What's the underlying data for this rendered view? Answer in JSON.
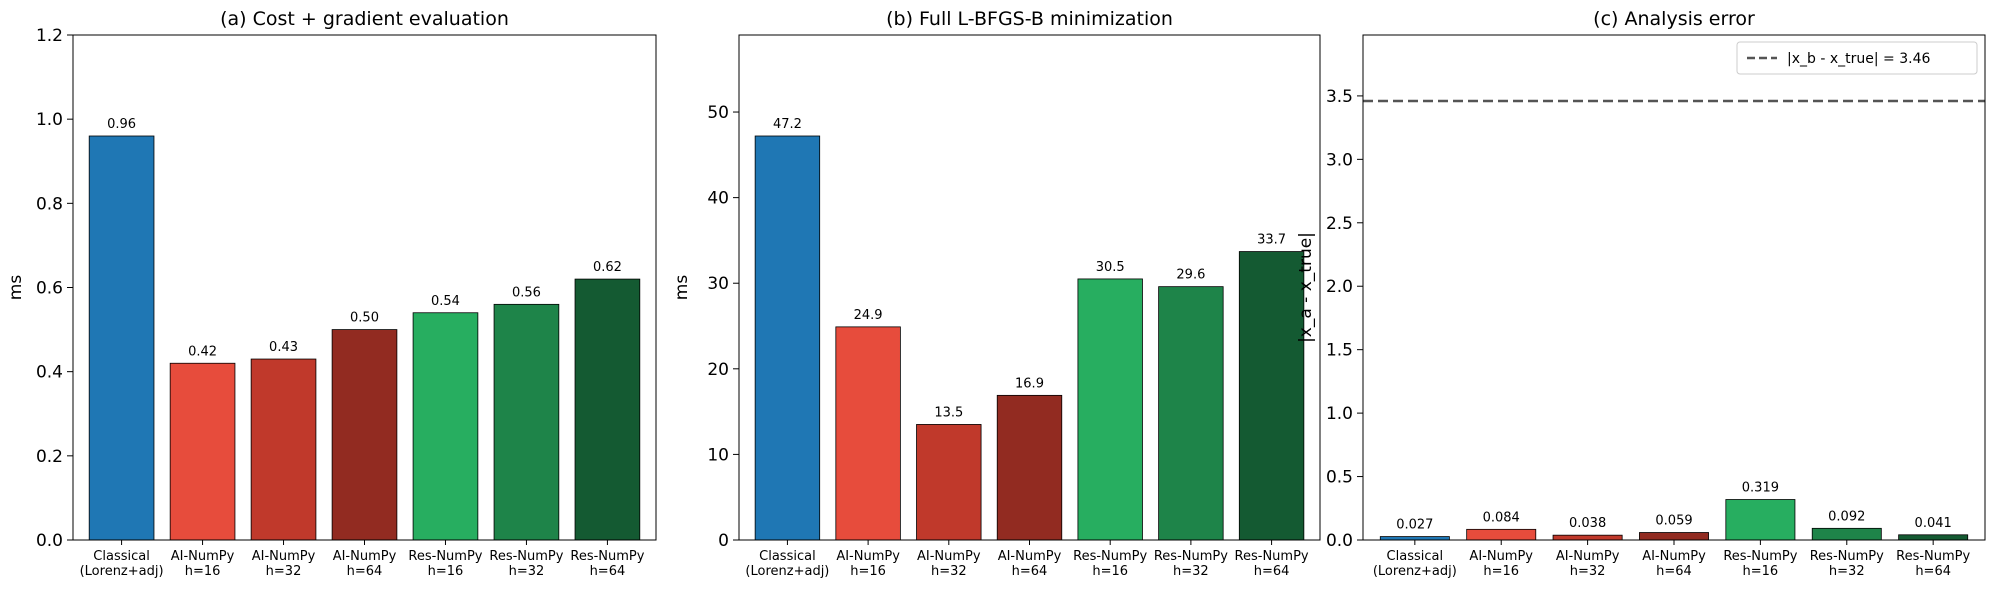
{
  "chart_data": [
    {
      "type": "bar",
      "title": "(a) Cost + gradient evaluation",
      "xlabel": "",
      "ylabel": "ms",
      "ylim": [
        0,
        1.2
      ],
      "yticks": [
        "0.0",
        "0.2",
        "0.4",
        "0.6",
        "0.8",
        "1.0",
        "1.2"
      ],
      "categories": [
        [
          "Classical",
          "(Lorenz+adj)"
        ],
        [
          "AI-NumPy",
          "h=16"
        ],
        [
          "AI-NumPy",
          "h=32"
        ],
        [
          "AI-NumPy",
          "h=64"
        ],
        [
          "Res-NumPy",
          "h=16"
        ],
        [
          "Res-NumPy",
          "h=32"
        ],
        [
          "Res-NumPy",
          "h=64"
        ]
      ],
      "values": [
        0.96,
        0.42,
        0.43,
        0.5,
        0.54,
        0.56,
        0.62
      ],
      "value_labels": [
        "0.96",
        "0.42",
        "0.43",
        "0.50",
        "0.54",
        "0.56",
        "0.62"
      ],
      "colors": [
        "#1f77b4",
        "#e74c3c",
        "#c0392b",
        "#922b21",
        "#27ae60",
        "#1e8449",
        "#145a32"
      ]
    },
    {
      "type": "bar",
      "title": "(b) Full L-BFGS-B minimization",
      "xlabel": "",
      "ylabel": "ms",
      "ylim": [
        0,
        59
      ],
      "yticks": [
        "0",
        "10",
        "20",
        "30",
        "40",
        "50"
      ],
      "categories": [
        [
          "Classical",
          "(Lorenz+adj)"
        ],
        [
          "AI-NumPy",
          "h=16"
        ],
        [
          "AI-NumPy",
          "h=32"
        ],
        [
          "AI-NumPy",
          "h=64"
        ],
        [
          "Res-NumPy",
          "h=16"
        ],
        [
          "Res-NumPy",
          "h=32"
        ],
        [
          "Res-NumPy",
          "h=64"
        ]
      ],
      "values": [
        47.2,
        24.9,
        13.5,
        16.9,
        30.5,
        29.6,
        33.7
      ],
      "value_labels": [
        "47.2",
        "24.9",
        "13.5",
        "16.9",
        "30.5",
        "29.6",
        "33.7"
      ],
      "colors": [
        "#1f77b4",
        "#e74c3c",
        "#c0392b",
        "#922b21",
        "#27ae60",
        "#1e8449",
        "#145a32"
      ]
    },
    {
      "type": "bar",
      "title": "(c) Analysis error",
      "xlabel": "",
      "ylabel": "|x_a - x_true|",
      "ylim": [
        0,
        3.98
      ],
      "yticks": [
        "0.0",
        "0.5",
        "1.0",
        "1.5",
        "2.0",
        "2.5",
        "3.0",
        "3.5"
      ],
      "categories": [
        [
          "Classical",
          "(Lorenz+adj)"
        ],
        [
          "AI-NumPy",
          "h=16"
        ],
        [
          "AI-NumPy",
          "h=32"
        ],
        [
          "AI-NumPy",
          "h=64"
        ],
        [
          "Res-NumPy",
          "h=16"
        ],
        [
          "Res-NumPy",
          "h=32"
        ],
        [
          "Res-NumPy",
          "h=64"
        ]
      ],
      "values": [
        0.027,
        0.084,
        0.038,
        0.059,
        0.319,
        0.092,
        0.041
      ],
      "value_labels": [
        "0.027",
        "0.084",
        "0.038",
        "0.059",
        "0.319",
        "0.092",
        "0.041"
      ],
      "colors": [
        "#1f77b4",
        "#e74c3c",
        "#c0392b",
        "#922b21",
        "#27ae60",
        "#1e8449",
        "#145a32"
      ],
      "reference_line": {
        "value": 3.46,
        "style": "dashed",
        "color": "#555555"
      },
      "legend": {
        "placement": "top-right",
        "entries": [
          "|x_b - x_true| = 3.46"
        ]
      }
    }
  ]
}
